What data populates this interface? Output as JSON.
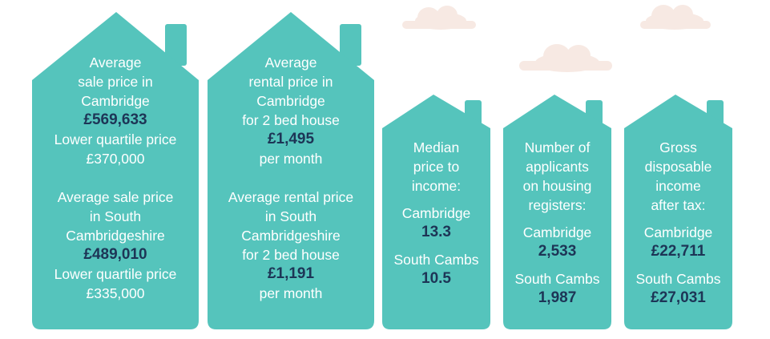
{
  "colors": {
    "house": "#55c4bc",
    "cloud": "#f7e9e3",
    "value": "#1d3556",
    "label": "#ffffff"
  },
  "houses": [
    {
      "lines1": [
        "Average",
        "sale price in",
        "Cambridge"
      ],
      "value1": "£569,633",
      "lines2": [
        "Lower quartile price",
        "£370,000"
      ],
      "lines3": [
        "Average sale price",
        "in South",
        "Cambridgeshire"
      ],
      "value2": "£489,010",
      "lines4": [
        "Lower quartile price",
        "£335,000"
      ]
    },
    {
      "lines1": [
        "Average",
        "rental price in",
        "Cambridge",
        "for 2 bed house"
      ],
      "value1": "£1,495",
      "lines2": [
        "per month"
      ],
      "lines3": [
        "Average rental price",
        "in South",
        "Cambridgeshire",
        "for 2 bed house"
      ],
      "value2": "£1,191",
      "lines4": [
        "per month"
      ]
    },
    {
      "lines1": [
        "Median",
        "price to",
        "income:"
      ],
      "label_a": "Cambridge",
      "value_a": "13.3",
      "label_b": "South Cambs",
      "value_b": "10.5"
    },
    {
      "lines1": [
        "Number of",
        "applicants",
        "on housing",
        "registers:"
      ],
      "label_a": "Cambridge",
      "value_a": "2,533",
      "label_b": "South Cambs",
      "value_b": "1,987"
    },
    {
      "lines1": [
        "Gross",
        "disposable",
        "income",
        "after tax:"
      ],
      "label_a": "Cambridge",
      "value_a": "£22,711",
      "label_b": "South Cambs",
      "value_b": "£27,031"
    }
  ]
}
